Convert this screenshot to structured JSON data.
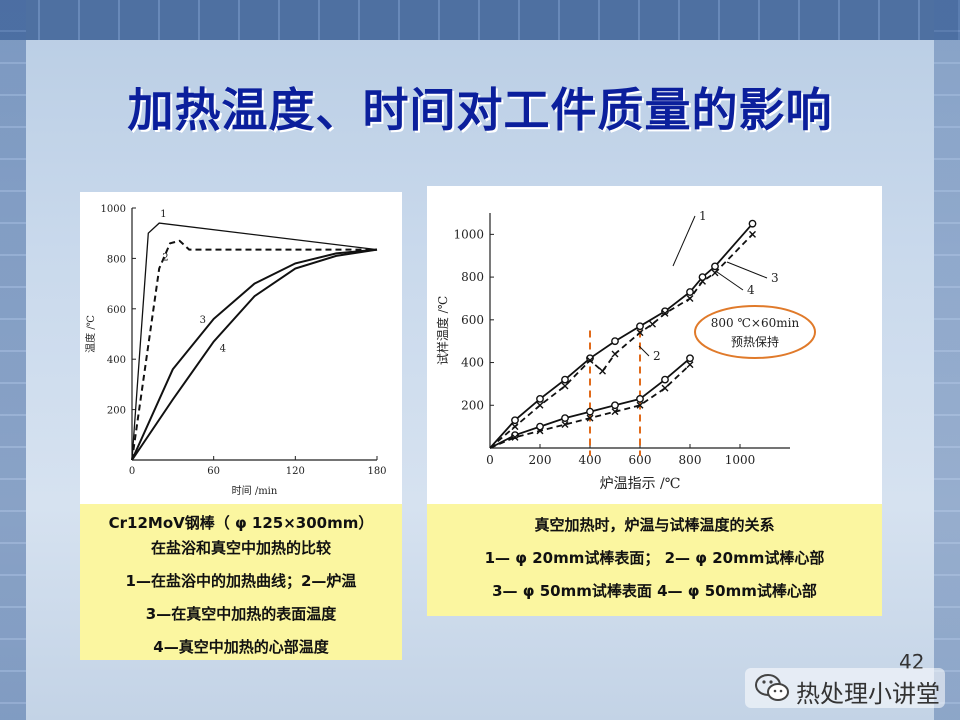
{
  "slide": {
    "title": "加热温度、时间对工件质量的影响",
    "page_number": "42",
    "watermark": "热处理小讲堂"
  },
  "captions": {
    "left": [
      "Cr12MoV钢棒（ φ 125×300mm）",
      "在盐浴和真空中加热的比较",
      "1—在盐浴中的加热曲线；2—炉温",
      "3—在真空中加热的表面温度",
      "4—真空中加热的心部温度"
    ],
    "right": [
      "真空加热时，炉温与试棒温度的关系",
      "1— φ 20mm试棒表面；  2— φ 20mm试棒心部",
      "3— φ 50mm试棒表面    4— φ 50mm试棒心部"
    ]
  },
  "colors": {
    "title": "#0b1f9c",
    "caption_bg": "#fbf6a0",
    "dash_marker": "#e06a1a",
    "ellipse": "#e07a2a"
  },
  "chart_data": [
    {
      "type": "line",
      "xlabel": "时间 /min",
      "ylabel": "温度 /℃",
      "x_ticks": [
        "0",
        "60",
        "120",
        "180"
      ],
      "y_ticks": [
        "200",
        "400",
        "600",
        "800",
        "1000"
      ],
      "xlim": [
        0,
        180
      ],
      "ylim": [
        0,
        1000
      ],
      "series": [
        {
          "name": "1",
          "style": "solid",
          "x": [
            0,
            12,
            20,
            180
          ],
          "y": [
            0,
            900,
            940,
            835
          ]
        },
        {
          "name": "2",
          "style": "dashed",
          "x": [
            0,
            20,
            28,
            35,
            42,
            180
          ],
          "y": [
            0,
            760,
            860,
            870,
            835,
            835
          ]
        },
        {
          "name": "3",
          "style": "solid",
          "x": [
            0,
            30,
            60,
            90,
            120,
            150,
            180
          ],
          "y": [
            0,
            360,
            560,
            700,
            780,
            820,
            835
          ]
        },
        {
          "name": "4",
          "style": "solid",
          "x": [
            0,
            30,
            60,
            90,
            120,
            150,
            180
          ],
          "y": [
            0,
            240,
            470,
            650,
            760,
            810,
            835
          ]
        }
      ]
    },
    {
      "type": "line",
      "xlabel": "炉温指示 /℃",
      "ylabel": "试样温度 /℃",
      "x_ticks": [
        "0",
        "200",
        "400",
        "600",
        "800",
        "1000"
      ],
      "y_ticks": [
        "200",
        "400",
        "600",
        "800",
        "1000"
      ],
      "xlim": [
        0,
        1200
      ],
      "ylim": [
        0,
        1100
      ],
      "annotation": [
        "800 ℃×60min",
        "预热保持"
      ],
      "markers_at_x": [
        400,
        600
      ],
      "series": [
        {
          "name": "1",
          "style": "solid-circle",
          "x": [
            0,
            100,
            200,
            300,
            400,
            500,
            600,
            700,
            800,
            850,
            900,
            1050
          ],
          "y": [
            0,
            130,
            230,
            320,
            420,
            500,
            570,
            640,
            730,
            800,
            850,
            1050
          ]
        },
        {
          "name": "2",
          "style": "dashed-x",
          "x": [
            0,
            100,
            200,
            300,
            400,
            450,
            500,
            600,
            650,
            700,
            800,
            850,
            900,
            1050
          ],
          "y": [
            0,
            100,
            200,
            290,
            410,
            360,
            440,
            540,
            580,
            630,
            700,
            780,
            820,
            1000
          ]
        },
        {
          "name": "3",
          "style": "solid-circle",
          "x": [
            0,
            100,
            200,
            300,
            400,
            500,
            600,
            700,
            800
          ],
          "y": [
            0,
            60,
            100,
            140,
            170,
            200,
            230,
            320,
            420
          ]
        },
        {
          "name": "4",
          "style": "dashed-x",
          "x": [
            0,
            100,
            200,
            300,
            400,
            500,
            600,
            700,
            800
          ],
          "y": [
            0,
            50,
            80,
            110,
            140,
            170,
            200,
            280,
            390
          ]
        }
      ]
    }
  ]
}
